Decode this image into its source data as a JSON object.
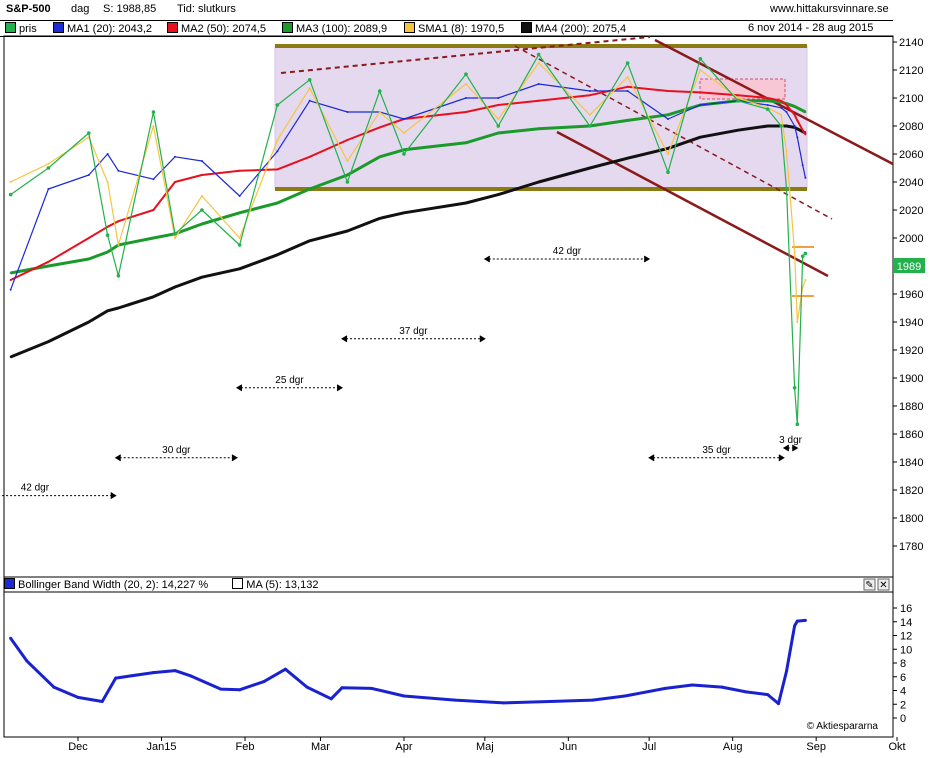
{
  "header": {
    "symbol": "S&P-500",
    "period": "dag",
    "close_label": "S: 1988,85",
    "time_label": "Tid:",
    "time_value": "slutkurs",
    "website": "www.hittakursvinnare.se",
    "date_range": "6 nov 2014 - 28 aug 2015"
  },
  "legend": [
    {
      "label": "pris",
      "color": "#22b14c"
    },
    {
      "label": "MA1 (20): 2043,2",
      "color": "#1a2bd6"
    },
    {
      "label": "MA2 (50): 2074,5",
      "color": "#e8101e"
    },
    {
      "label": "MA3 (100): 2089,9",
      "color": "#1a9a2a"
    },
    {
      "label": "SMA1 (8): 1970,5",
      "color": "#f5c542"
    },
    {
      "label": "MA4 (200): 2075,4",
      "color": "#111111"
    }
  ],
  "price_badge": "1989",
  "indicator": {
    "label": "Bollinger Band Width (20, 2): 14,227  %",
    "ma_label": "MA (5): 13,132",
    "watermark": "© Aktiespararna"
  },
  "annotations": [
    {
      "label": "42 dgr",
      "x1": "2014-10-16",
      "x2": "2014-12-15",
      "y": 1816
    },
    {
      "label": "30 dgr",
      "x1": "2014-12-15",
      "x2": "2015-01-29",
      "y": 1843
    },
    {
      "label": "25 dgr",
      "x1": "2015-01-29",
      "x2": "2015-03-09",
      "y": 1893
    },
    {
      "label": "37 dgr",
      "x1": "2015-03-09",
      "x2": "2015-05-01",
      "y": 1928
    },
    {
      "label": "42 dgr",
      "x1": "2015-05-01",
      "x2": "2015-07-01",
      "y": 1985
    },
    {
      "label": "35 dgr",
      "x1": "2015-07-01",
      "x2": "2015-08-20",
      "y": 1843
    },
    {
      "label": "3 dgr",
      "x1": "2015-08-20",
      "x2": "2015-08-25",
      "y": 1850
    }
  ],
  "chart_data": [
    {
      "type": "line",
      "title": "S&P-500",
      "xlabel": "",
      "ylabel": "",
      "x_ticks": [
        "Dec",
        "Jan15",
        "Feb",
        "Mar",
        "Apr",
        "Maj",
        "Jun",
        "Jul",
        "Aug",
        "Sep",
        "Okt"
      ],
      "x_tick_dates": [
        "2014-12-01",
        "2015-01-01",
        "2015-02-01",
        "2015-03-01",
        "2015-04-01",
        "2015-05-01",
        "2015-06-01",
        "2015-07-01",
        "2015-08-01",
        "2015-09-01",
        "2015-10-01"
      ],
      "ylim": [
        1780,
        2145
      ],
      "y_ticks": [
        1780,
        1800,
        1820,
        1840,
        1860,
        1880,
        1900,
        1920,
        1940,
        1960,
        1980,
        2000,
        2020,
        2040,
        2060,
        2080,
        2100,
        2120,
        2140
      ],
      "grid": false,
      "x": [
        "2014-11-06",
        "2014-11-20",
        "2014-12-05",
        "2014-12-12",
        "2014-12-16",
        "2014-12-29",
        "2015-01-06",
        "2015-01-16",
        "2015-01-30",
        "2015-02-13",
        "2015-02-25",
        "2015-03-11",
        "2015-03-23",
        "2015-04-01",
        "2015-04-24",
        "2015-05-06",
        "2015-05-21",
        "2015-06-09",
        "2015-06-23",
        "2015-07-08",
        "2015-07-20",
        "2015-08-03",
        "2015-08-14",
        "2015-08-19",
        "2015-08-21",
        "2015-08-24",
        "2015-08-25",
        "2015-08-27",
        "2015-08-28"
      ],
      "series": [
        {
          "name": "pris",
          "values": [
            2031,
            2050,
            2075,
            2002,
            1973,
            2090,
            2003,
            2020,
            1995,
            2095,
            2113,
            2040,
            2105,
            2060,
            2117,
            2080,
            2131,
            2080,
            2125,
            2047,
            2128,
            2098,
            2092,
            2080,
            2035,
            1893,
            1867,
            1987,
            1989
          ]
        },
        {
          "name": "MA1 (20)",
          "values": [
            1963,
            2035,
            2045,
            2060,
            2048,
            2042,
            2058,
            2055,
            2030,
            2062,
            2098,
            2090,
            2090,
            2085,
            2100,
            2100,
            2110,
            2105,
            2105,
            2085,
            2095,
            2098,
            2095,
            2093,
            2090,
            2080,
            2072,
            2052,
            2043
          ]
        },
        {
          "name": "MA2 (50)",
          "values": [
            1970,
            1983,
            2000,
            2008,
            2012,
            2020,
            2040,
            2045,
            2048,
            2049,
            2058,
            2070,
            2079,
            2085,
            2090,
            2095,
            2098,
            2102,
            2108,
            2105,
            2104,
            2102,
            2100,
            2098,
            2095,
            2088,
            2084,
            2077,
            2074
          ]
        },
        {
          "name": "MA3 (100)",
          "values": [
            1975,
            1980,
            1985,
            1990,
            1995,
            2000,
            2003,
            2010,
            2018,
            2025,
            2035,
            2045,
            2058,
            2063,
            2068,
            2075,
            2078,
            2080,
            2084,
            2088,
            2095,
            2098,
            2098,
            2097,
            2096,
            2094,
            2093,
            2091,
            2090
          ]
        },
        {
          "name": "SMA1 (8)",
          "values": [
            2040,
            2053,
            2072,
            2040,
            1995,
            2080,
            2000,
            2030,
            2000,
            2070,
            2107,
            2055,
            2090,
            2075,
            2110,
            2085,
            2125,
            2088,
            2115,
            2060,
            2120,
            2100,
            2093,
            2088,
            2062,
            1990,
            1940,
            1965,
            1970
          ]
        },
        {
          "name": "MA4 (200)",
          "values": [
            1915,
            1926,
            1940,
            1948,
            1950,
            1958,
            1965,
            1972,
            1978,
            1988,
            1998,
            2005,
            2014,
            2018,
            2025,
            2031,
            2040,
            2050,
            2057,
            2064,
            2072,
            2077,
            2080,
            2080,
            2080,
            2079,
            2078,
            2076,
            2075
          ]
        }
      ]
    },
    {
      "type": "line",
      "title": "Bollinger Band Width (20, 2)",
      "xlabel": "",
      "ylabel": "%",
      "ylim": [
        0,
        17
      ],
      "y_ticks": [
        0,
        2,
        4,
        6,
        8,
        10,
        12,
        14,
        16
      ],
      "grid": false,
      "x": [
        "2014-11-06",
        "2014-11-12",
        "2014-11-22",
        "2014-12-01",
        "2014-12-10",
        "2014-12-15",
        "2014-12-29",
        "2015-01-06",
        "2015-01-12",
        "2015-01-23",
        "2015-01-30",
        "2015-02-08",
        "2015-02-16",
        "2015-02-24",
        "2015-03-05",
        "2015-03-09",
        "2015-03-20",
        "2015-04-01",
        "2015-04-20",
        "2015-05-08",
        "2015-05-25",
        "2015-06-10",
        "2015-06-22",
        "2015-07-07",
        "2015-07-17",
        "2015-07-28",
        "2015-08-06",
        "2015-08-14",
        "2015-08-18",
        "2015-08-21",
        "2015-08-24",
        "2015-08-25",
        "2015-08-28"
      ],
      "series": [
        {
          "name": "Bollinger Band Width (20, 2)",
          "values": [
            11.6,
            8.3,
            4.5,
            3.0,
            2.4,
            5.8,
            6.6,
            6.9,
            6.1,
            4.2,
            4.1,
            5.3,
            7.1,
            4.5,
            2.8,
            4.4,
            4.3,
            3.2,
            2.6,
            2.2,
            2.4,
            2.6,
            3.2,
            4.3,
            4.8,
            4.5,
            3.8,
            3.4,
            2.1,
            6.8,
            13.4,
            14.1,
            14.2
          ]
        }
      ]
    }
  ]
}
